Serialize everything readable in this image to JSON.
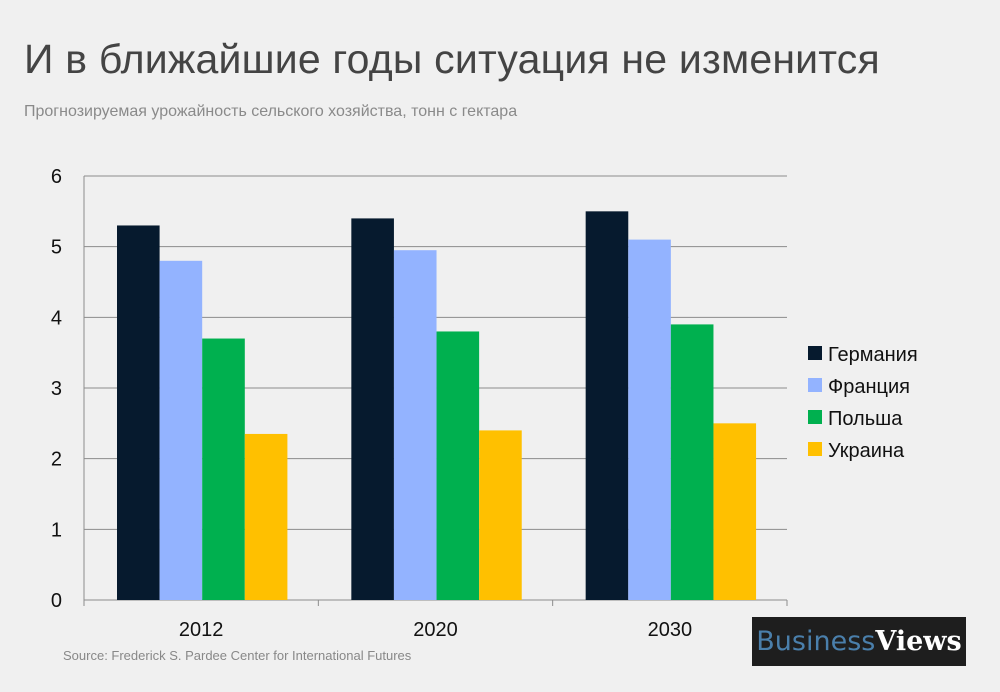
{
  "title": "И в ближайшие годы ситуация не изменится",
  "subtitle": "Прогнозируемая урожайность сельского хозяйства, тонн с гектара",
  "source": "Source: Frederick S. Pardee Center for International Futures",
  "logo": {
    "part1": "Business",
    "part2": "Views"
  },
  "chart_data": {
    "type": "bar",
    "title": "И в ближайшие годы ситуация не изменится",
    "subtitle": "Прогнозируемая урожайность сельского хозяйства, тонн с гектара",
    "categories": [
      "2012",
      "2020",
      "2030"
    ],
    "series": [
      {
        "name": "Германия",
        "color": "#061a2e",
        "values": [
          5.3,
          5.4,
          5.5
        ]
      },
      {
        "name": "Франция",
        "color": "#93b3ff",
        "values": [
          4.8,
          4.95,
          5.1
        ]
      },
      {
        "name": "Польша",
        "color": "#00b04f",
        "values": [
          3.7,
          3.8,
          3.9
        ]
      },
      {
        "name": "Украина",
        "color": "#ffc000",
        "values": [
          2.35,
          2.4,
          2.5
        ]
      }
    ],
    "ylim": [
      0,
      6
    ],
    "yticks": [
      "0",
      "1",
      "2",
      "3",
      "4",
      "5",
      "6"
    ],
    "grid": true,
    "legend": "right"
  }
}
